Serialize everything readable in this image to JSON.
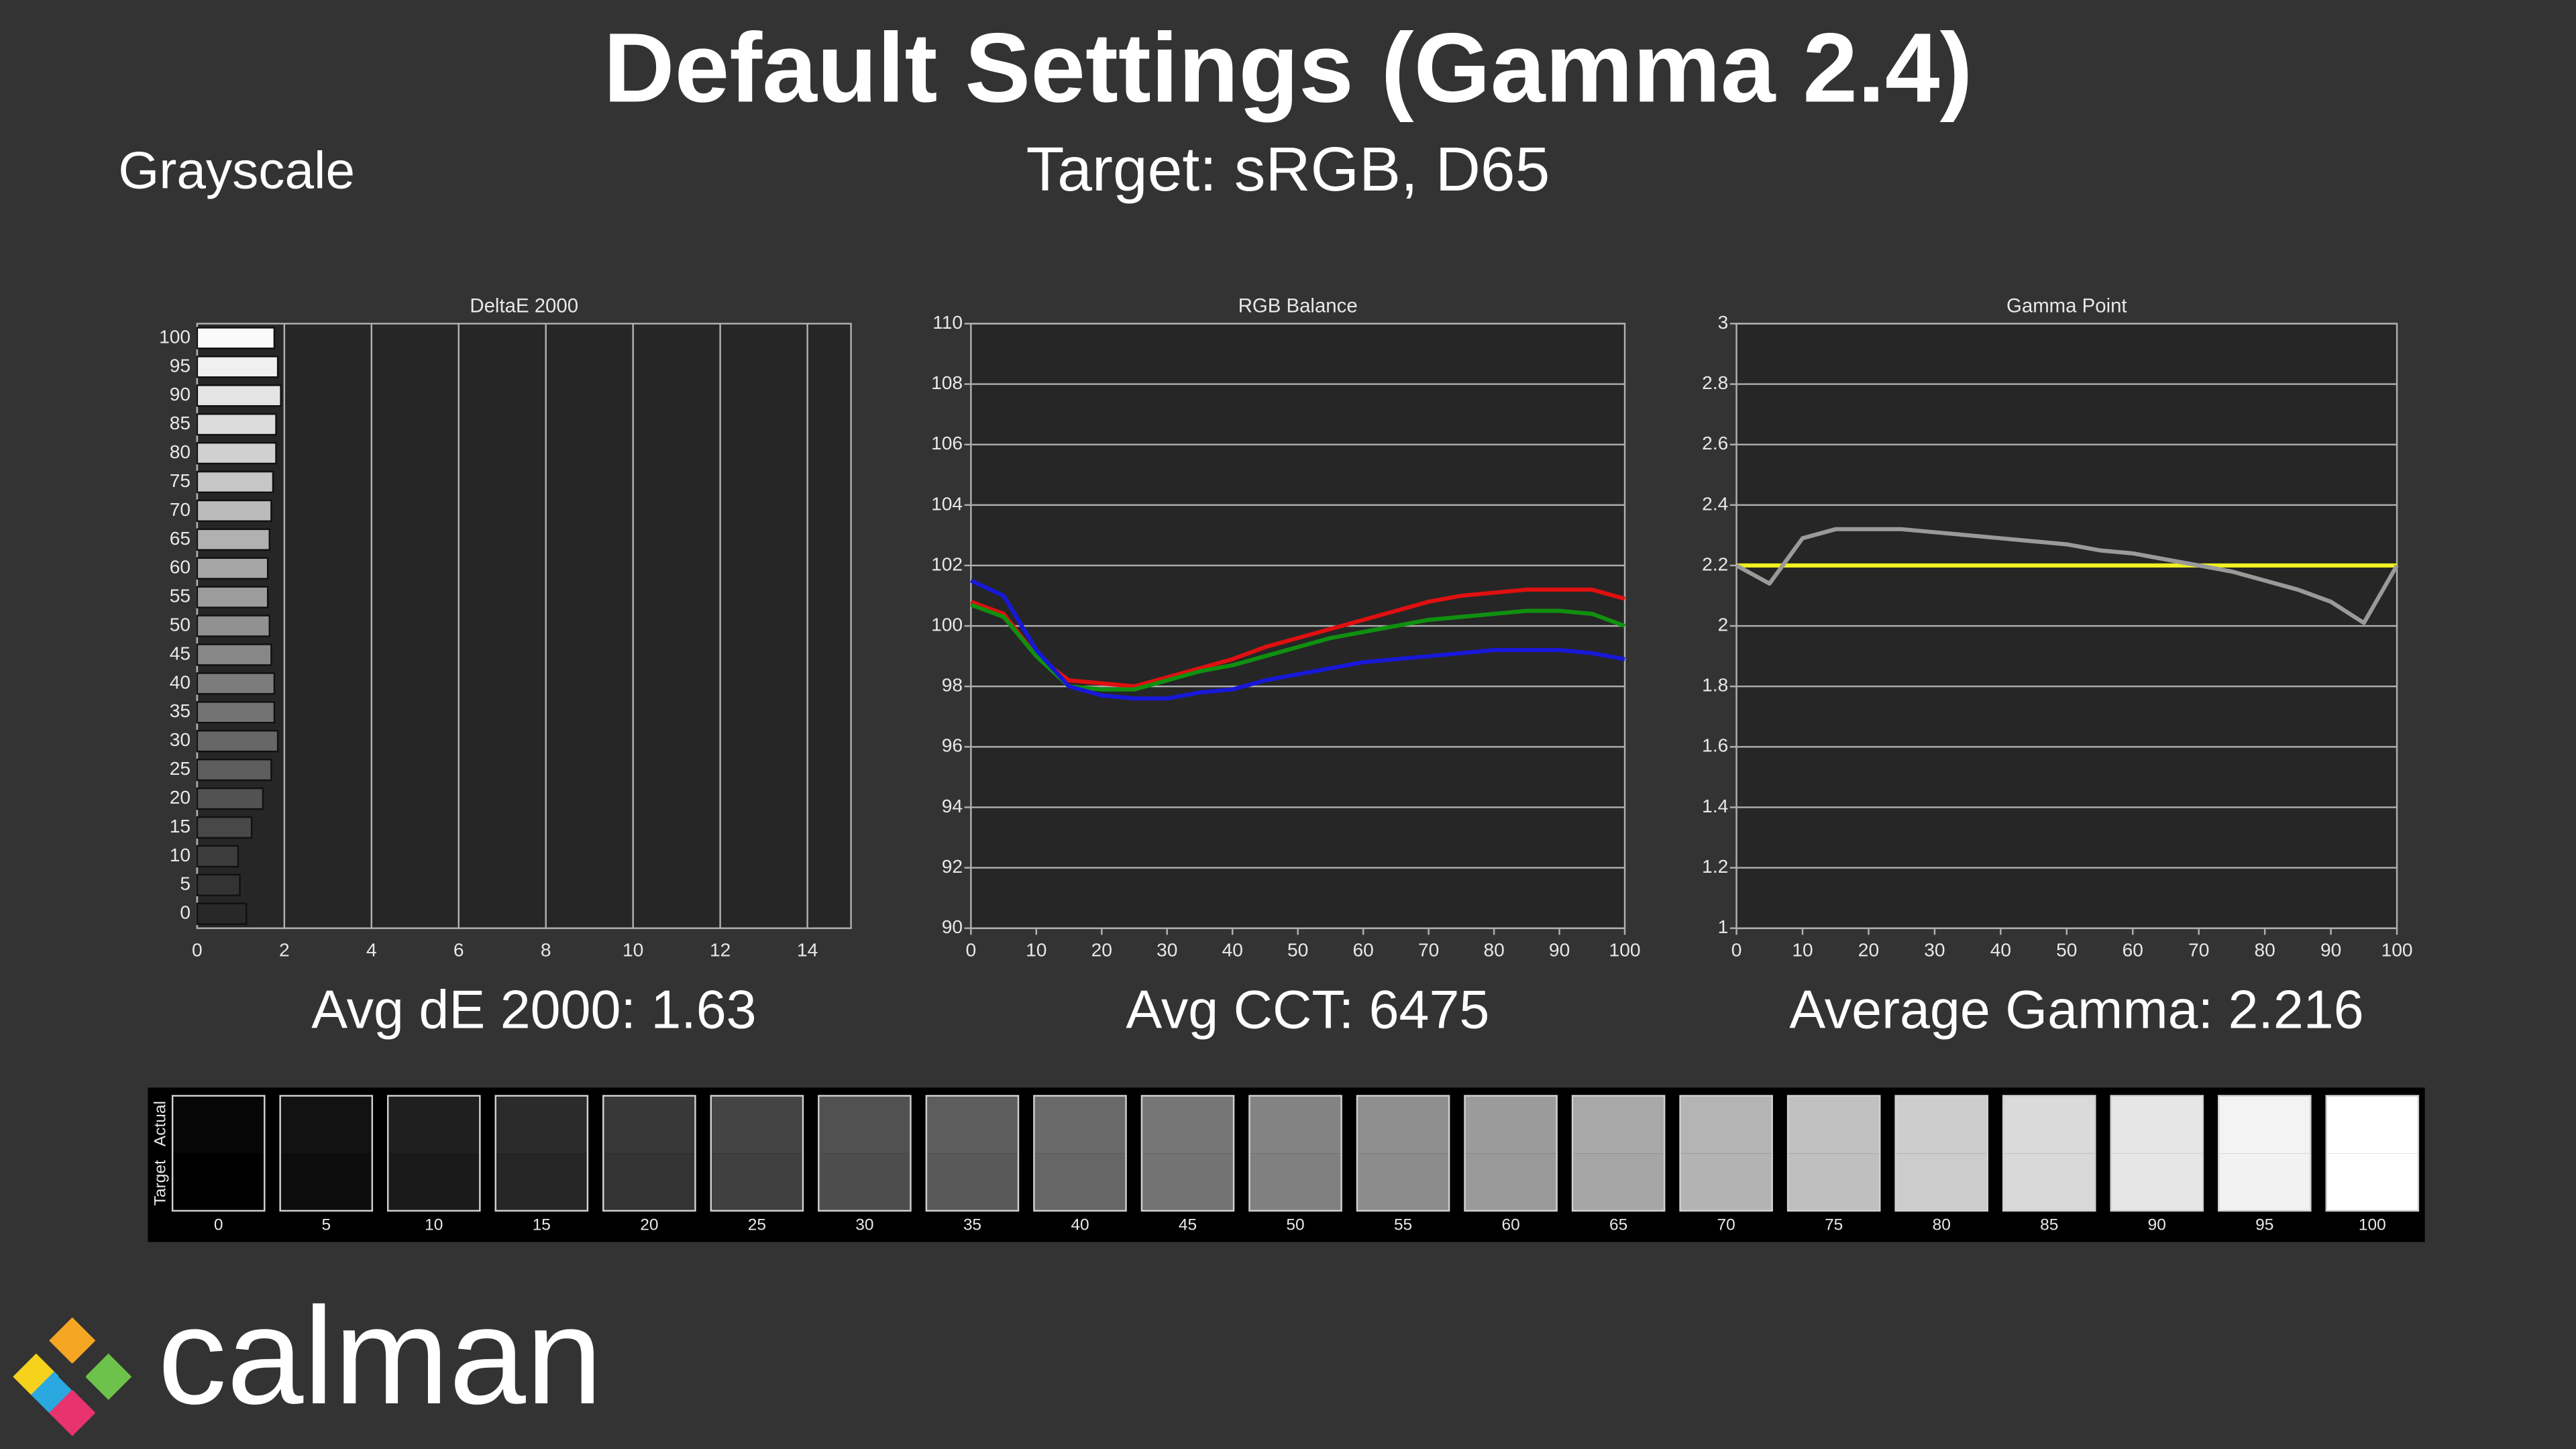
{
  "title": "Default Settings (Gamma 2.4)",
  "section": "Grayscale",
  "subtitle": "Target: sRGB, D65",
  "chart_data": [
    {
      "type": "bar",
      "horizontal": true,
      "title": "DeltaE 2000",
      "summary": "Avg dE 2000: 1.63",
      "categories": [
        100,
        95,
        90,
        85,
        80,
        75,
        70,
        65,
        60,
        55,
        50,
        45,
        40,
        35,
        30,
        25,
        20,
        15,
        10,
        5,
        0
      ],
      "values": [
        1.77,
        1.85,
        1.92,
        1.81,
        1.81,
        1.74,
        1.7,
        1.66,
        1.62,
        1.62,
        1.66,
        1.7,
        1.77,
        1.77,
        1.85,
        1.7,
        1.51,
        1.25,
        0.94,
        0.98,
        1.13
      ],
      "xlim": [
        0,
        15
      ],
      "xticks": [
        0,
        2,
        4,
        6,
        8,
        10,
        12,
        14
      ],
      "grid": true
    },
    {
      "type": "line",
      "title": "RGB Balance",
      "summary": "Avg CCT: 6475",
      "x": [
        0,
        5,
        10,
        15,
        20,
        25,
        30,
        35,
        40,
        45,
        50,
        55,
        60,
        65,
        70,
        75,
        80,
        85,
        90,
        95,
        100
      ],
      "series": [
        {
          "color": "#e01010",
          "values": [
            100.8,
            100.4,
            99.0,
            98.2,
            98.1,
            98.0,
            98.3,
            98.6,
            98.9,
            99.3,
            99.6,
            99.9,
            100.2,
            100.5,
            100.8,
            101.0,
            101.1,
            101.2,
            101.2,
            101.2,
            100.9
          ]
        },
        {
          "color": "#109010",
          "values": [
            100.7,
            100.3,
            99.0,
            98.0,
            97.9,
            97.9,
            98.2,
            98.5,
            98.7,
            99.0,
            99.3,
            99.6,
            99.8,
            100.0,
            100.2,
            100.3,
            100.4,
            100.5,
            100.5,
            100.4,
            100.0
          ]
        },
        {
          "color": "#1818d8",
          "values": [
            101.5,
            101.0,
            99.2,
            98.0,
            97.7,
            97.6,
            97.6,
            97.8,
            97.9,
            98.2,
            98.4,
            98.6,
            98.8,
            98.9,
            99.0,
            99.1,
            99.2,
            99.2,
            99.2,
            99.1,
            98.9
          ]
        }
      ],
      "xlim": [
        0,
        100
      ],
      "xticks": [
        0,
        10,
        20,
        30,
        40,
        50,
        60,
        70,
        80,
        90,
        100
      ],
      "ylim": [
        90,
        110
      ],
      "yticks": [
        90,
        92,
        94,
        96,
        98,
        100,
        102,
        104,
        106,
        108,
        110
      ],
      "grid": true
    },
    {
      "type": "line",
      "title": "Gamma Point",
      "summary": "Average Gamma: 2.216",
      "x": [
        0,
        5,
        10,
        15,
        20,
        25,
        30,
        35,
        40,
        45,
        50,
        55,
        60,
        65,
        70,
        75,
        80,
        85,
        90,
        95,
        100
      ],
      "series": [
        {
          "color": "#f0f020",
          "values": [
            2.2,
            2.2,
            2.2,
            2.2,
            2.2,
            2.2,
            2.2,
            2.2,
            2.2,
            2.2,
            2.2,
            2.2,
            2.2,
            2.2,
            2.2,
            2.2,
            2.2,
            2.2,
            2.2,
            2.2,
            2.2
          ]
        },
        {
          "color": "#9a9a9a",
          "values": [
            2.2,
            2.14,
            2.29,
            2.32,
            2.32,
            2.32,
            2.31,
            2.3,
            2.29,
            2.28,
            2.27,
            2.25,
            2.24,
            2.22,
            2.2,
            2.18,
            2.15,
            2.12,
            2.08,
            2.01,
            2.2
          ]
        }
      ],
      "xlim": [
        0,
        100
      ],
      "xticks": [
        0,
        10,
        20,
        30,
        40,
        50,
        60,
        70,
        80,
        90,
        100
      ],
      "ylim": [
        1,
        3
      ],
      "yticks": [
        1,
        1.2,
        1.4,
        1.6,
        1.8,
        2,
        2.2,
        2.4,
        2.6,
        2.8,
        3
      ],
      "grid": true
    }
  ],
  "swatches": {
    "rows": [
      "Actual",
      "Target"
    ],
    "categories": [
      0,
      5,
      10,
      15,
      20,
      25,
      30,
      35,
      40,
      45,
      50,
      55,
      60,
      65,
      70,
      75,
      80,
      85,
      90,
      95,
      100
    ]
  },
  "logo": "calman"
}
